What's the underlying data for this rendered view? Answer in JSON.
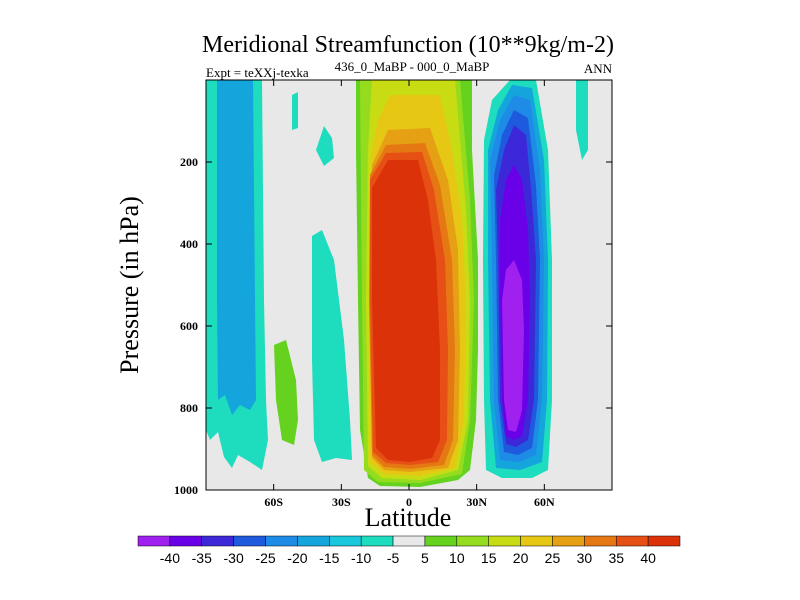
{
  "chart_data": {
    "type": "heatmap",
    "title": "Meridional Streamfunction (10**9kg/m-2)",
    "left_subtitle": "Expt = teXXj-texka",
    "center_subtitle": "436_0_MaBP - 000_0_MaBP",
    "right_subtitle": "ANN",
    "xlabel": "Latitude",
    "ylabel": "Pressure (in hPa)",
    "xlim": [
      -90,
      90
    ],
    "ylim": [
      1000,
      0
    ],
    "x_ticks": [
      -60,
      -30,
      0,
      30,
      60
    ],
    "x_tick_labels": [
      "60S",
      "30S",
      "0",
      "30N",
      "60N"
    ],
    "y_ticks": [
      200,
      400,
      600,
      800,
      1000
    ],
    "y_tick_labels": [
      "200",
      "400",
      "600",
      "800",
      "1000"
    ],
    "colorbar": {
      "labels": [
        "-40",
        "-35",
        "-30",
        "-25",
        "-20",
        "-15",
        "-10",
        "-5",
        "5",
        "10",
        "15",
        "20",
        "25",
        "30",
        "35",
        "40"
      ],
      "colors": [
        "#a020f0",
        "#6a00e8",
        "#3c28d8",
        "#1e5ade",
        "#1e8ce6",
        "#14a5dc",
        "#19c8dc",
        "#1edcbe",
        "#e8e8e8",
        "#64d21e",
        "#96dc1e",
        "#c8dc14",
        "#e6c814",
        "#e6a014",
        "#e67814",
        "#e65014",
        "#dc320a"
      ]
    },
    "features": [
      {
        "name": "southern-hemisphere-weak-negative",
        "lat_range": [
          -88,
          -62
        ],
        "pressure_range": [
          0,
          950
        ],
        "level": -10
      },
      {
        "name": "southern-hemisphere-negative-core",
        "lat_range": [
          -83,
          -69
        ],
        "pressure_range": [
          0,
          870
        ],
        "level": -15
      },
      {
        "name": "southern-midlat-weak-positive",
        "lat_range": [
          -60,
          -50
        ],
        "pressure_range": [
          640,
          880
        ],
        "level": 5
      },
      {
        "name": "southern-subtropics-weak-negative",
        "lat_range": [
          -40,
          -24
        ],
        "pressure_range": [
          350,
          950
        ],
        "level": -10
      },
      {
        "name": "southern-subtropics-small-negative-patch",
        "lat_range": [
          -35,
          -29
        ],
        "pressure_range": [
          100,
          200
        ],
        "level": -10
      },
      {
        "name": "tropical-positive-cell",
        "lat_range": [
          -16,
          26
        ],
        "pressure_range": [
          0,
          1000
        ],
        "level": 40
      },
      {
        "name": "northern-negative-cell",
        "lat_range": [
          32,
          62
        ],
        "pressure_range": [
          0,
          1000
        ],
        "level": -40
      },
      {
        "name": "northern-highlat-weak-negative",
        "lat_range": [
          72,
          79
        ],
        "pressure_range": [
          0,
          220
        ],
        "level": -10
      }
    ]
  }
}
